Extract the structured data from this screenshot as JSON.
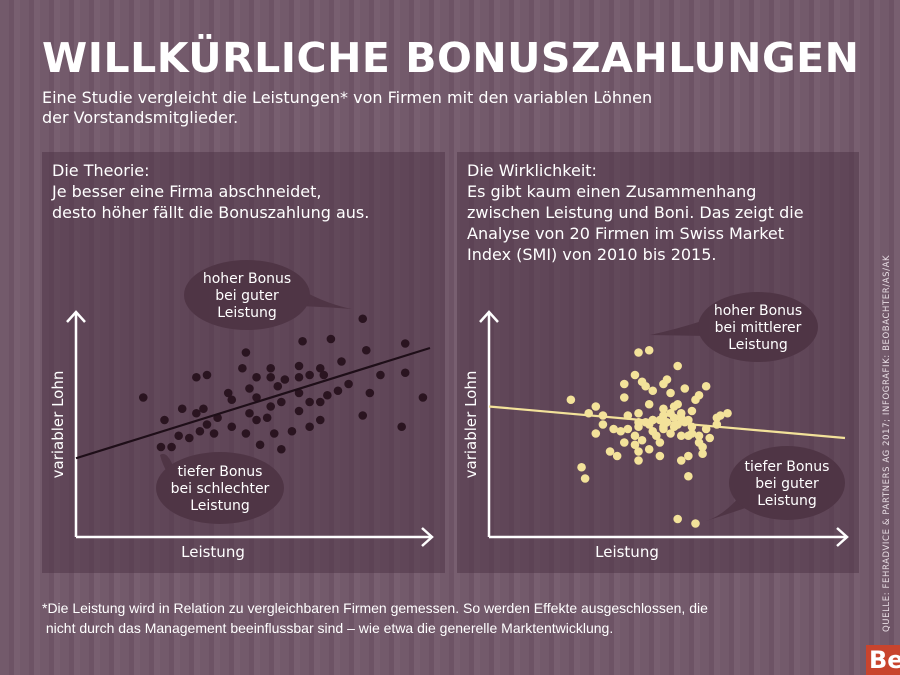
{
  "title": "WILLKÜRLICHE BONUSZAHLUNGEN",
  "subtitle_lines": [
    "Eine Studie vergleicht die Leistungen* von Firmen mit den variablen Löhnen",
    "der Vorstandsmitglieder."
  ],
  "panels": {
    "left": {
      "lines": [
        "Die Theorie:",
        "Je besser eine Firma abschneidet,",
        "desto höher fällt die Bonuszahlung aus."
      ]
    },
    "right": {
      "lines": [
        "Die Wirklichkeit:",
        "Es gibt kaum einen Zusammenhang",
        "zwischen Leistung und Boni. Das zeigt die",
        "Analyse von 20 Firmen im Swiss Market",
        "Index (SMI) von 2010 bis 2015."
      ]
    }
  },
  "footnote_lines": [
    "*Die Leistung wird in Relation zu vergleichbaren Firmen gemessen. So werden Effekte ausgeschlossen, die",
    " nicht durch das Management beeinflussbar sind – wie etwa die generelle Marktentwicklung."
  ],
  "source": "QUELLE: FEHRADVICE & PARTNERS AG 2017; INFOGRAFIK: BEOBACHTER/AS/AK",
  "logo": "Be",
  "colors": {
    "background": "#735a6b",
    "panel": "#654b5c",
    "bubble": "#4f3545",
    "left_points": "#2a1420",
    "right_points": "#f3e29a",
    "text": "#ffffff"
  },
  "chart_data": [
    {
      "type": "scatter",
      "title": "",
      "xlabel": "Leistung",
      "ylabel": "variabler Lohn",
      "xlim": [
        0,
        100
      ],
      "ylim": [
        0,
        100
      ],
      "grid": false,
      "ticks": false,
      "trendline": {
        "x": [
          0,
          100
        ],
        "y": [
          35,
          84
        ]
      },
      "annotations": [
        {
          "lines": [
            "hoher Bonus",
            "bei guter",
            "Leistung"
          ]
        },
        {
          "lines": [
            "tiefer Bonus",
            "bei schlechter",
            "Leistung"
          ]
        }
      ],
      "points": [
        [
          19,
          62
        ],
        [
          25,
          52
        ],
        [
          24,
          40
        ],
        [
          27,
          40
        ],
        [
          29,
          45
        ],
        [
          30,
          57
        ],
        [
          32,
          44
        ],
        [
          34,
          71
        ],
        [
          34,
          55
        ],
        [
          35,
          47
        ],
        [
          36,
          57
        ],
        [
          37,
          72
        ],
        [
          37,
          50
        ],
        [
          39,
          46
        ],
        [
          40,
          53
        ],
        [
          43,
          64
        ],
        [
          44,
          61
        ],
        [
          44,
          49
        ],
        [
          47,
          75
        ],
        [
          48,
          82
        ],
        [
          48,
          46
        ],
        [
          49,
          66
        ],
        [
          49,
          55
        ],
        [
          51,
          62
        ],
        [
          51,
          52
        ],
        [
          51,
          71
        ],
        [
          52,
          41
        ],
        [
          54,
          53
        ],
        [
          55,
          75
        ],
        [
          55,
          58
        ],
        [
          55,
          71
        ],
        [
          56,
          46
        ],
        [
          57,
          67
        ],
        [
          58,
          39
        ],
        [
          58,
          60
        ],
        [
          59,
          70
        ],
        [
          61,
          47
        ],
        [
          63,
          56
        ],
        [
          63,
          76
        ],
        [
          63,
          71
        ],
        [
          63,
          64
        ],
        [
          64,
          87
        ],
        [
          66,
          60
        ],
        [
          66,
          49
        ],
        [
          66,
          72
        ],
        [
          69,
          75
        ],
        [
          69,
          60
        ],
        [
          69,
          52
        ],
        [
          70,
          72
        ],
        [
          71,
          63
        ],
        [
          72,
          88
        ],
        [
          74,
          65
        ],
        [
          75,
          78
        ],
        [
          77,
          68
        ],
        [
          81,
          97
        ],
        [
          81,
          54
        ],
        [
          82,
          83
        ],
        [
          83,
          64
        ],
        [
          86,
          72
        ],
        [
          92,
          49
        ],
        [
          93,
          86
        ],
        [
          93,
          73
        ],
        [
          98,
          62
        ]
      ]
    },
    {
      "type": "scatter",
      "title": "",
      "xlabel": "Leistung",
      "ylabel": "variabler Lohn",
      "xlim": [
        0,
        100
      ],
      "ylim": [
        0,
        100
      ],
      "grid": false,
      "ticks": false,
      "trendline": {
        "x": [
          0,
          100
        ],
        "y": [
          58,
          44
        ]
      },
      "annotations": [
        {
          "lines": [
            "hoher Bonus",
            "bei mittlerer",
            "Leistung"
          ]
        },
        {
          "lines": [
            "tiefer Bonus",
            "bei guter",
            "Leistung"
          ]
        }
      ],
      "points": [
        [
          23,
          61
        ],
        [
          26,
          31
        ],
        [
          27,
          26
        ],
        [
          28,
          55
        ],
        [
          30,
          46
        ],
        [
          30,
          58
        ],
        [
          32,
          54
        ],
        [
          32,
          50
        ],
        [
          34,
          38
        ],
        [
          35,
          48
        ],
        [
          36,
          36
        ],
        [
          37,
          47
        ],
        [
          38,
          42
        ],
        [
          38,
          62
        ],
        [
          38,
          68
        ],
        [
          39,
          54
        ],
        [
          39,
          48
        ],
        [
          41,
          72
        ],
        [
          41,
          45
        ],
        [
          41,
          41
        ],
        [
          42,
          55
        ],
        [
          42,
          38
        ],
        [
          42,
          34
        ],
        [
          42,
          82
        ],
        [
          42,
          51
        ],
        [
          43,
          69
        ],
        [
          43,
          43
        ],
        [
          44,
          67
        ],
        [
          45,
          83
        ],
        [
          45,
          39
        ],
        [
          45,
          50
        ],
        [
          45,
          59
        ],
        [
          46,
          47
        ],
        [
          46,
          65
        ],
        [
          46,
          52
        ],
        [
          47,
          45
        ],
        [
          48,
          42
        ],
        [
          48,
          36
        ],
        [
          49,
          54
        ],
        [
          49,
          48
        ],
        [
          49,
          68
        ],
        [
          49,
          57
        ],
        [
          50,
          70
        ],
        [
          50,
          51
        ],
        [
          51,
          55
        ],
        [
          51,
          46
        ],
        [
          51,
          64
        ],
        [
          52,
          53
        ],
        [
          52,
          58
        ],
        [
          53,
          76
        ],
        [
          53,
          50
        ],
        [
          53,
          59
        ],
        [
          53,
          8
        ],
        [
          54,
          34
        ],
        [
          54,
          45
        ],
        [
          54,
          55
        ],
        [
          55,
          51
        ],
        [
          55,
          66
        ],
        [
          56,
          45
        ],
        [
          56,
          36
        ],
        [
          56,
          52
        ],
        [
          56,
          27
        ],
        [
          57,
          56
        ],
        [
          57,
          46
        ],
        [
          58,
          6
        ],
        [
          58,
          61
        ],
        [
          59,
          42
        ],
        [
          59,
          63
        ],
        [
          59,
          45
        ],
        [
          60,
          40
        ],
        [
          60,
          37
        ],
        [
          61,
          48
        ],
        [
          61,
          67
        ],
        [
          62,
          44
        ],
        [
          64,
          50
        ],
        [
          64,
          53
        ],
        [
          65,
          54
        ],
        [
          67,
          55
        ],
        [
          44,
          51
        ],
        [
          48,
          52
        ],
        [
          52,
          49
        ],
        [
          49,
          49
        ],
        [
          42,
          49
        ],
        [
          46,
          52
        ],
        [
          54,
          53
        ],
        [
          57,
          49
        ]
      ]
    }
  ]
}
